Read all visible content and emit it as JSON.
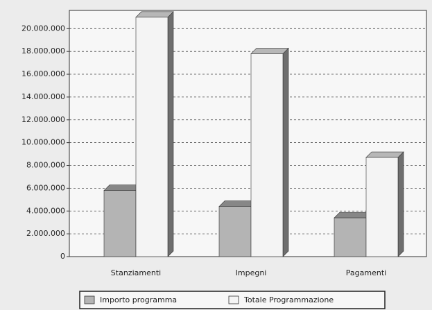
{
  "chart_data": {
    "type": "bar3d",
    "categories": [
      "Stanziamenti",
      "Impegni",
      "Pagamenti"
    ],
    "series": [
      {
        "name": "Importo programma",
        "color": "#b4b4b4",
        "values": [
          5800000,
          4400000,
          3400000
        ]
      },
      {
        "name": "Totale Programmazione",
        "color": "#f4f4f4",
        "values": [
          21000000,
          17800000,
          8700000
        ]
      }
    ],
    "ylim": [
      0,
      21600000
    ],
    "yticks": [
      0,
      {
        "value": 2000000,
        "label": "2.000.000"
      },
      {
        "value": 4000000,
        "label": "4.000.000"
      },
      {
        "value": 6000000,
        "label": "6.000.000"
      },
      {
        "value": 8000000,
        "label": "8.000.000"
      },
      {
        "value": 10000000,
        "label": "10.000.000"
      },
      {
        "value": 12000000,
        "label": "12.000.000"
      },
      {
        "value": 14000000,
        "label": "14.000.000"
      },
      {
        "value": 16000000,
        "label": "16.000.000"
      },
      {
        "value": 18000000,
        "label": "18.000.000"
      },
      {
        "value": 20000000,
        "label": "20.000.000"
      }
    ],
    "grid": true,
    "legend": "bottom"
  }
}
